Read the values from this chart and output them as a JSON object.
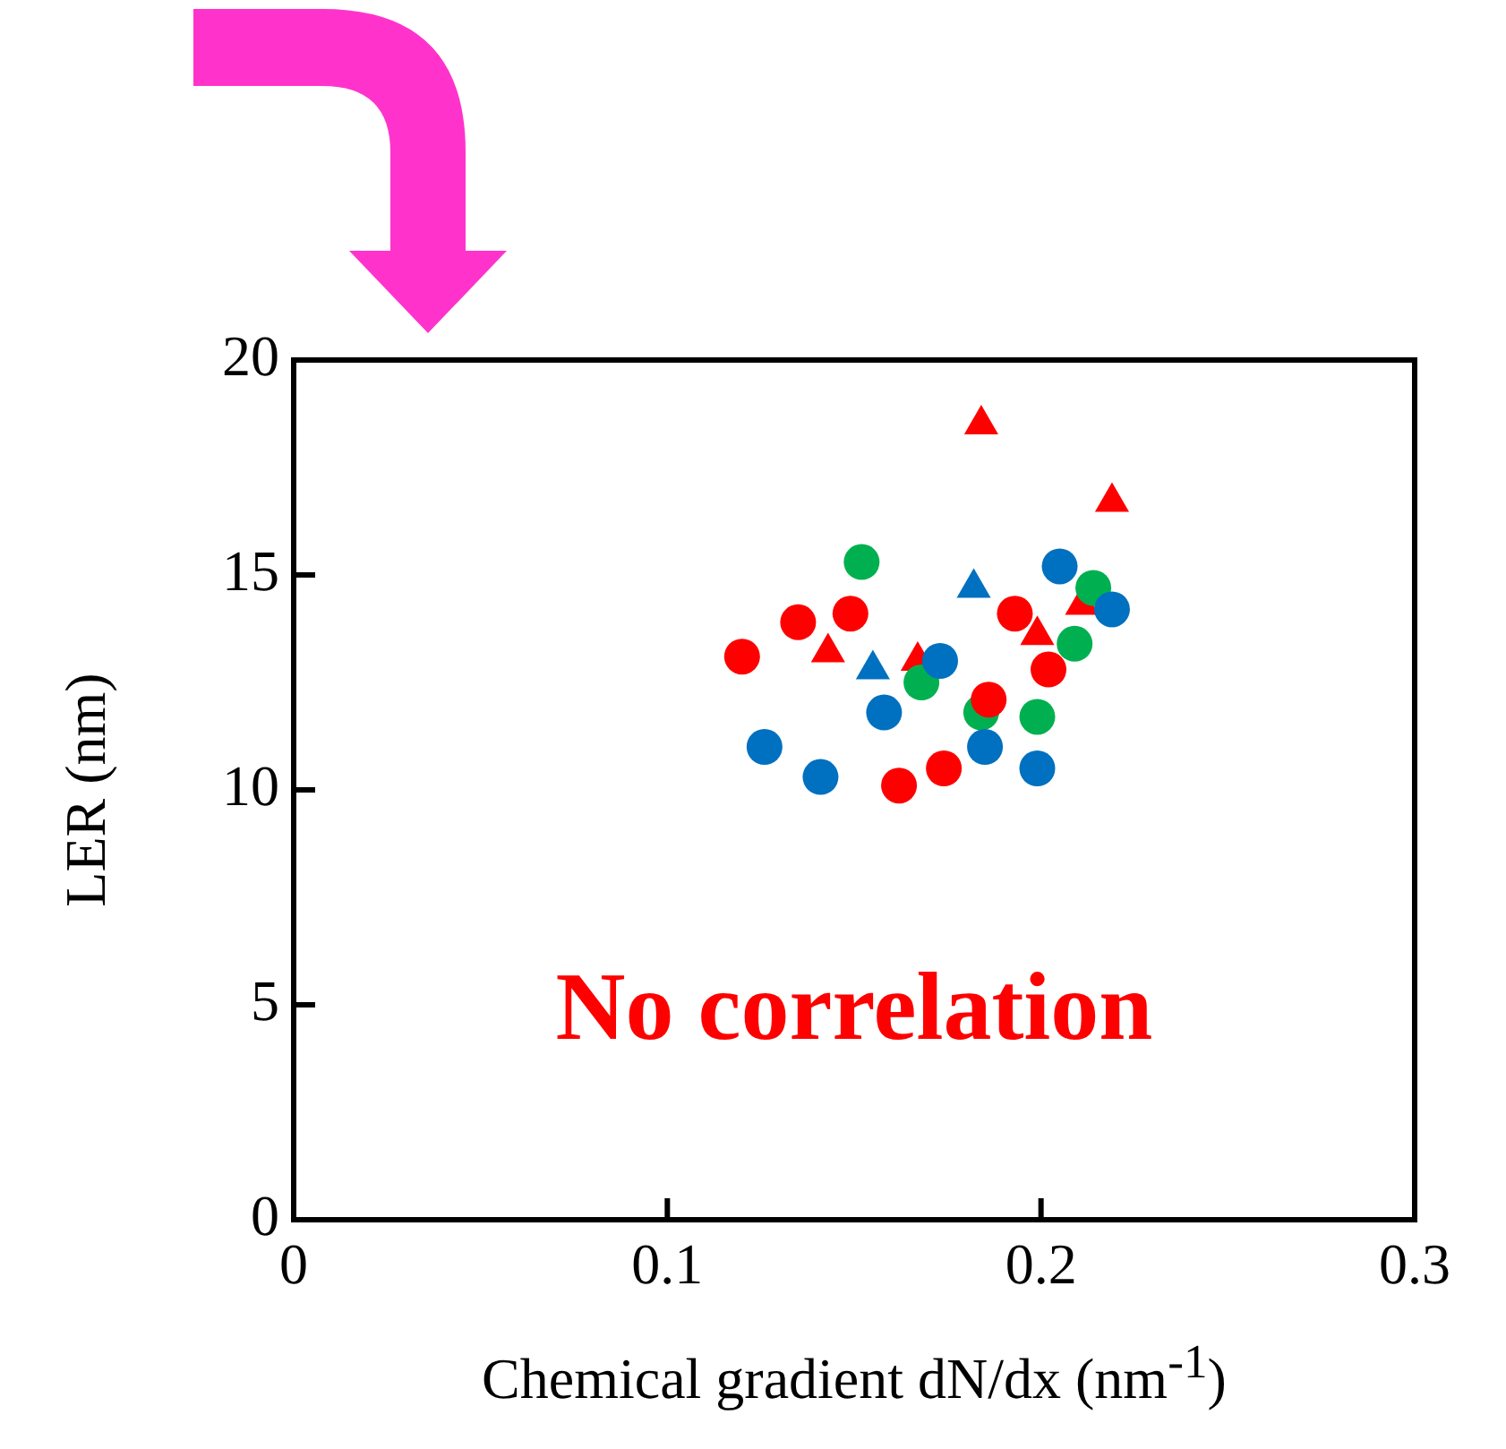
{
  "chart_data": {
    "type": "scatter",
    "xlabel": "Chemical gradient dN/dx (nm$^{-1}$)",
    "ylabel": "LER (nm)",
    "xlim": [
      0,
      0.3
    ],
    "xticks": [
      0,
      0.1,
      0.2,
      0.3
    ],
    "ylim": [
      0,
      20
    ],
    "yticks": [
      0,
      5,
      10,
      15,
      20
    ],
    "grid": false,
    "legend": false,
    "annotations": [
      "No correlation"
    ],
    "series": [
      {
        "color": "#0070c0",
        "marker": "circle",
        "x": [
          0.126,
          0.141,
          0.158,
          0.173,
          0.185,
          0.199,
          0.205,
          0.219
        ],
        "values": [
          11.0,
          10.3,
          11.8,
          13.0,
          11.0,
          10.5,
          15.2,
          14.2
        ]
      },
      {
        "color": "#0070c0",
        "marker": "triangle",
        "x": [
          0.155,
          0.182
        ],
        "values": [
          12.8,
          14.7
        ]
      },
      {
        "color": "#ff0000",
        "marker": "circle",
        "x": [
          0.12,
          0.135,
          0.149,
          0.162,
          0.174,
          0.186,
          0.193,
          0.202
        ],
        "values": [
          13.1,
          13.9,
          14.1,
          10.1,
          10.5,
          12.1,
          14.1,
          12.8
        ]
      },
      {
        "color": "#00b050",
        "marker": "circle",
        "x": [
          0.152,
          0.168,
          0.184,
          0.199,
          0.209,
          0.214
        ],
        "values": [
          15.3,
          12.5,
          11.8,
          11.7,
          13.4,
          14.7
        ]
      },
      {
        "color": "#ff0000",
        "marker": "triangle",
        "x": [
          0.184,
          0.219,
          0.143,
          0.167,
          0.199,
          0.211
        ],
        "values": [
          18.5,
          16.7,
          13.2,
          13.0,
          13.6,
          14.3
        ]
      }
    ]
  }
}
